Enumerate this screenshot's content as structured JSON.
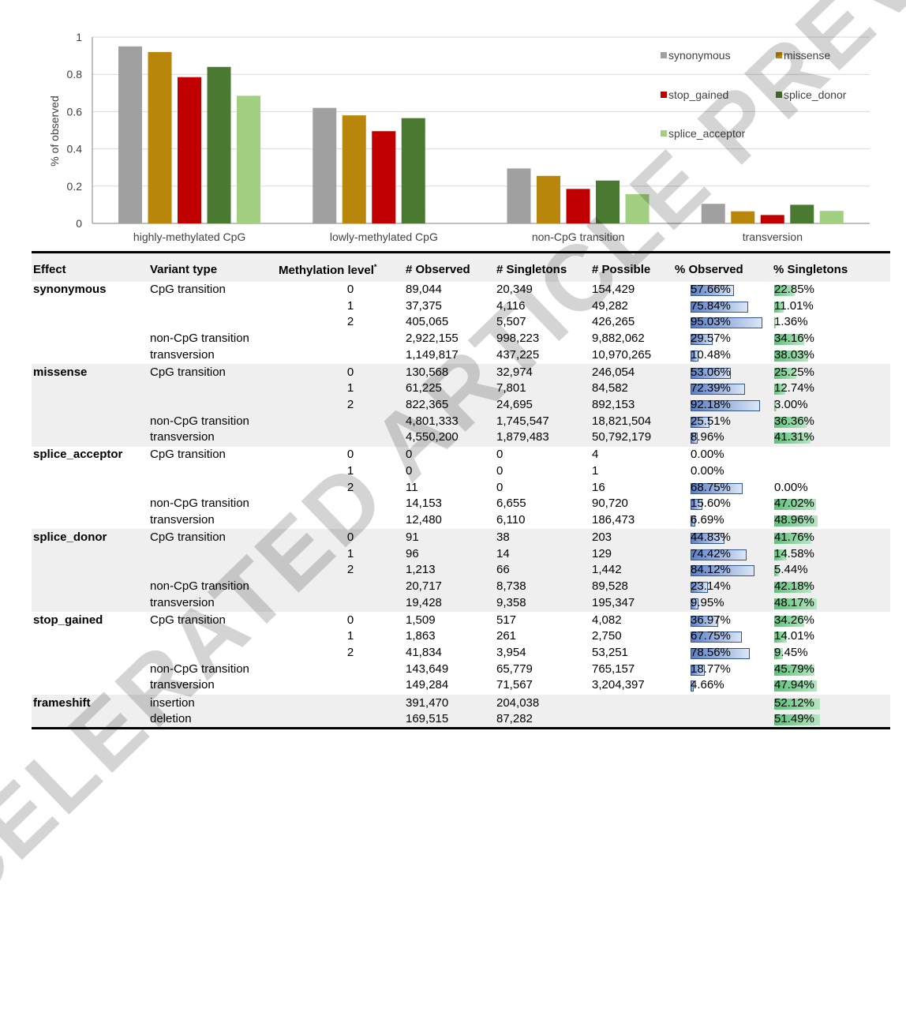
{
  "chart_data": {
    "type": "bar",
    "ylabel": "% of observed",
    "ylim": [
      0,
      1
    ],
    "yticks": [
      "0",
      "0.2",
      "0.4",
      "0.6",
      "0.8",
      "1"
    ],
    "categories": [
      "highly-methylated CpG",
      "lowly-methylated CpG",
      "non-CpG transition",
      "transversion"
    ],
    "legend_position": "top-right",
    "series": [
      {
        "name": "synonymous",
        "color": "#a0a0a0",
        "values": [
          0.95,
          0.62,
          0.295,
          0.105
        ]
      },
      {
        "name": "missense",
        "color": "#b8860b",
        "values": [
          0.92,
          0.58,
          0.255,
          0.065
        ]
      },
      {
        "name": "stop_gained",
        "color": "#c00000",
        "values": [
          0.785,
          0.495,
          0.185,
          0.045
        ]
      },
      {
        "name": "splice_donor",
        "color": "#4a7a32",
        "values": [
          0.84,
          0.565,
          0.23,
          0.1
        ]
      },
      {
        "name": "splice_acceptor",
        "color": "#a0d080",
        "values": [
          0.685,
          null,
          0.157,
          0.067
        ]
      }
    ]
  },
  "table": {
    "headers": [
      "Effect",
      "Variant type",
      "Methylation level",
      "# Observed",
      "# Singletons",
      "# Possible",
      "% Observed",
      "% Singletons"
    ],
    "header_footnote": "*",
    "groups": [
      {
        "effect": "synonymous",
        "rows": [
          {
            "variant": "CpG transition",
            "meth": "0",
            "obs": "89,044",
            "sing": "20,349",
            "poss": "154,429",
            "pobs": "57.66%",
            "psing": "22.85%"
          },
          {
            "variant": "",
            "meth": "1",
            "obs": "37,375",
            "sing": "4,116",
            "poss": "49,282",
            "pobs": "75.84%",
            "psing": "11.01%"
          },
          {
            "variant": "",
            "meth": "2",
            "obs": "405,065",
            "sing": "5,507",
            "poss": "426,265",
            "pobs": "95.03%",
            "psing": "1.36%"
          },
          {
            "variant": "non-CpG transition",
            "meth": "",
            "obs": "2,922,155",
            "sing": "998,223",
            "poss": "9,882,062",
            "pobs": "29.57%",
            "psing": "34.16%"
          },
          {
            "variant": "transversion",
            "meth": "",
            "obs": "1,149,817",
            "sing": "437,225",
            "poss": "10,970,265",
            "pobs": "10.48%",
            "psing": "38.03%"
          }
        ]
      },
      {
        "effect": "missense",
        "rows": [
          {
            "variant": "CpG transition",
            "meth": "0",
            "obs": "130,568",
            "sing": "32,974",
            "poss": "246,054",
            "pobs": "53.06%",
            "psing": "25.25%"
          },
          {
            "variant": "",
            "meth": "1",
            "obs": "61,225",
            "sing": "7,801",
            "poss": "84,582",
            "pobs": "72.39%",
            "psing": "12.74%"
          },
          {
            "variant": "",
            "meth": "2",
            "obs": "822,365",
            "sing": "24,695",
            "poss": "892,153",
            "pobs": "92.18%",
            "psing": "3.00%"
          },
          {
            "variant": "non-CpG transition",
            "meth": "",
            "obs": "4,801,333",
            "sing": "1,745,547",
            "poss": "18,821,504",
            "pobs": "25.51%",
            "psing": "36.36%"
          },
          {
            "variant": "transversion",
            "meth": "",
            "obs": "4,550,200",
            "sing": "1,879,483",
            "poss": "50,792,179",
            "pobs": "8.96%",
            "psing": "41.31%"
          }
        ]
      },
      {
        "effect": "splice_acceptor",
        "rows": [
          {
            "variant": "CpG transition",
            "meth": "0",
            "obs": "0",
            "sing": "0",
            "poss": "4",
            "pobs": "0.00%",
            "psing": ""
          },
          {
            "variant": "",
            "meth": "1",
            "obs": "0",
            "sing": "0",
            "poss": "1",
            "pobs": "0.00%",
            "psing": ""
          },
          {
            "variant": "",
            "meth": "2",
            "obs": "11",
            "sing": "0",
            "poss": "16",
            "pobs": "68.75%",
            "psing": "0.00%"
          },
          {
            "variant": "non-CpG transition",
            "meth": "",
            "obs": "14,153",
            "sing": "6,655",
            "poss": "90,720",
            "pobs": "15.60%",
            "psing": "47.02%"
          },
          {
            "variant": "transversion",
            "meth": "",
            "obs": "12,480",
            "sing": "6,110",
            "poss": "186,473",
            "pobs": "6.69%",
            "psing": "48.96%"
          }
        ]
      },
      {
        "effect": "splice_donor",
        "rows": [
          {
            "variant": "CpG transition",
            "meth": "0",
            "obs": "91",
            "sing": "38",
            "poss": "203",
            "pobs": "44.83%",
            "psing": "41.76%"
          },
          {
            "variant": "",
            "meth": "1",
            "obs": "96",
            "sing": "14",
            "poss": "129",
            "pobs": "74.42%",
            "psing": "14.58%"
          },
          {
            "variant": "",
            "meth": "2",
            "obs": "1,213",
            "sing": "66",
            "poss": "1,442",
            "pobs": "84.12%",
            "psing": "5.44%"
          },
          {
            "variant": "non-CpG transition",
            "meth": "",
            "obs": "20,717",
            "sing": "8,738",
            "poss": "89,528",
            "pobs": "23.14%",
            "psing": "42.18%"
          },
          {
            "variant": "transversion",
            "meth": "",
            "obs": "19,428",
            "sing": "9,358",
            "poss": "195,347",
            "pobs": "9.95%",
            "psing": "48.17%"
          }
        ]
      },
      {
        "effect": "stop_gained",
        "rows": [
          {
            "variant": "CpG transition",
            "meth": "0",
            "obs": "1,509",
            "sing": "517",
            "poss": "4,082",
            "pobs": "36.97%",
            "psing": "34.26%"
          },
          {
            "variant": "",
            "meth": "1",
            "obs": "1,863",
            "sing": "261",
            "poss": "2,750",
            "pobs": "67.75%",
            "psing": "14.01%"
          },
          {
            "variant": "",
            "meth": "2",
            "obs": "41,834",
            "sing": "3,954",
            "poss": "53,251",
            "pobs": "78.56%",
            "psing": "9.45%"
          },
          {
            "variant": "non-CpG transition",
            "meth": "",
            "obs": "143,649",
            "sing": "65,779",
            "poss": "765,157",
            "pobs": "18.77%",
            "psing": "45.79%"
          },
          {
            "variant": "transversion",
            "meth": "",
            "obs": "149,284",
            "sing": "71,567",
            "poss": "3,204,397",
            "pobs": "4.66%",
            "psing": "47.94%"
          }
        ]
      },
      {
        "effect": "frameshift",
        "rows": [
          {
            "variant": "insertion",
            "meth": "",
            "obs": "391,470",
            "sing": "204,038",
            "poss": "",
            "pobs": "",
            "psing": "52.12%"
          },
          {
            "variant": "deletion",
            "meth": "",
            "obs": "169,515",
            "sing": "87,282",
            "poss": "",
            "pobs": "",
            "psing": "51.49%"
          }
        ]
      }
    ]
  },
  "watermark": "ACCELERATED ARTICLE PREVIEW",
  "colors": {
    "observed_bar": "#5b7fc4",
    "singleton_bar": "#5cc07a",
    "band": "#efefef"
  }
}
